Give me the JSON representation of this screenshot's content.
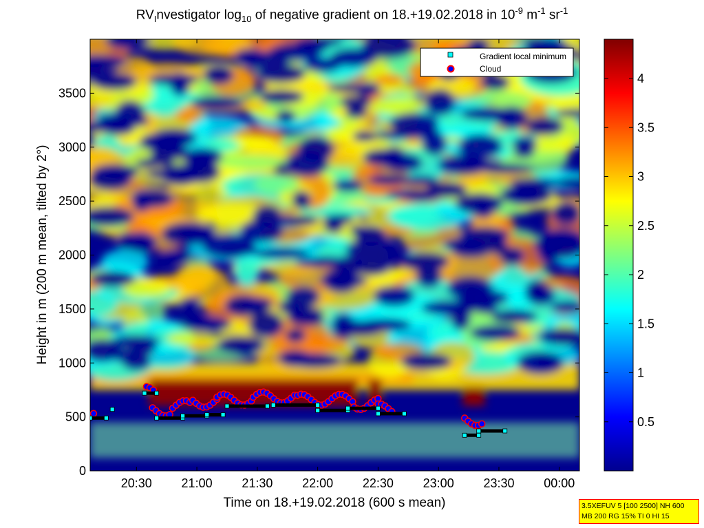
{
  "title": {
    "main": "RV",
    "sub_i": "I",
    "part2": "nvestigator log",
    "sub_10": "10",
    "part3": " of negative gradient on 18.+19.02.2018 in 10",
    "sup1": "-9",
    "part4": " m",
    "sup2": "-1",
    "part5": " sr",
    "sup3": "-1"
  },
  "settings_box": {
    "line1": "3.5XEFUV 5 [100 2500] NH 600",
    "line2": "MB 200 RG 15% TI 0 HI 15"
  },
  "chart_data": {
    "type": "heatmap",
    "xlabel": "Time on 18.+19.02.2018 (600 s mean)",
    "ylabel": "Height in m (200 m mean, tilted by 2°)",
    "x_ticks": [
      "20:30",
      "21:00",
      "21:30",
      "22:00",
      "22:30",
      "23:00",
      "23:30",
      "00:00"
    ],
    "x_range": [
      "20:07",
      "00:10"
    ],
    "y_ticks": [
      0,
      500,
      1000,
      1500,
      2000,
      2500,
      3000,
      3500
    ],
    "ylim": [
      0,
      4000
    ],
    "colorbar": {
      "ticks": [
        0.5,
        1,
        1.5,
        2,
        2.5,
        3,
        3.5,
        4
      ],
      "range": [
        0,
        4.4
      ],
      "colormap": "jet"
    },
    "legend": {
      "placement": "top-right",
      "entries": [
        {
          "label": "Gradient local minimum",
          "marker": "cyan square",
          "color": "#00ffff"
        },
        {
          "label": "Cloud",
          "marker": "blue circle, red edge",
          "color": "#ff0000"
        }
      ]
    },
    "cloud_segments": [
      {
        "t": "20:07-20:10",
        "height": 560
      },
      {
        "t": "20:35-20:39",
        "height": 730
      },
      {
        "t": "20:38-20:48",
        "height": 560
      },
      {
        "t": "20:48-20:58",
        "height": 600
      },
      {
        "t": "20:58-21:10",
        "height": 640
      },
      {
        "t": "21:10-21:28",
        "height": 660
      },
      {
        "t": "21:28-21:50",
        "height": 680
      },
      {
        "t": "21:50-22:18",
        "height": 660
      },
      {
        "t": "22:18-22:30",
        "height": 620
      },
      {
        "t": "22:30-22:38",
        "height": 570
      },
      {
        "t": "23:13-23:22",
        "height": 470
      }
    ],
    "gradient_minima": [
      {
        "t": "20:07-20:15",
        "height": 490
      },
      {
        "t": "20:18",
        "height": 570
      },
      {
        "t": "20:34-20:40",
        "height": 720
      },
      {
        "t": "20:40-20:53",
        "height": 490
      },
      {
        "t": "20:53-21:05",
        "height": 510
      },
      {
        "t": "21:05-21:13",
        "height": 520
      },
      {
        "t": "21:15-21:35",
        "height": 600
      },
      {
        "t": "21:38-22:00",
        "height": 610
      },
      {
        "t": "22:00-22:15",
        "height": 560
      },
      {
        "t": "22:15-22:30",
        "height": 580
      },
      {
        "t": "22:30-22:43",
        "height": 530
      },
      {
        "t": "23:13-23:20",
        "height": 330
      },
      {
        "t": "23:20-23:33",
        "height": 370
      }
    ],
    "colors": {
      "background_low": "#00008f",
      "mid_cyan": "#00ffff",
      "mid_yellow": "#ffff00",
      "high_red": "#800000",
      "cloud_fill": "#0000ff",
      "cloud_edge": "#ff0000",
      "minima_line": "#000000"
    }
  }
}
